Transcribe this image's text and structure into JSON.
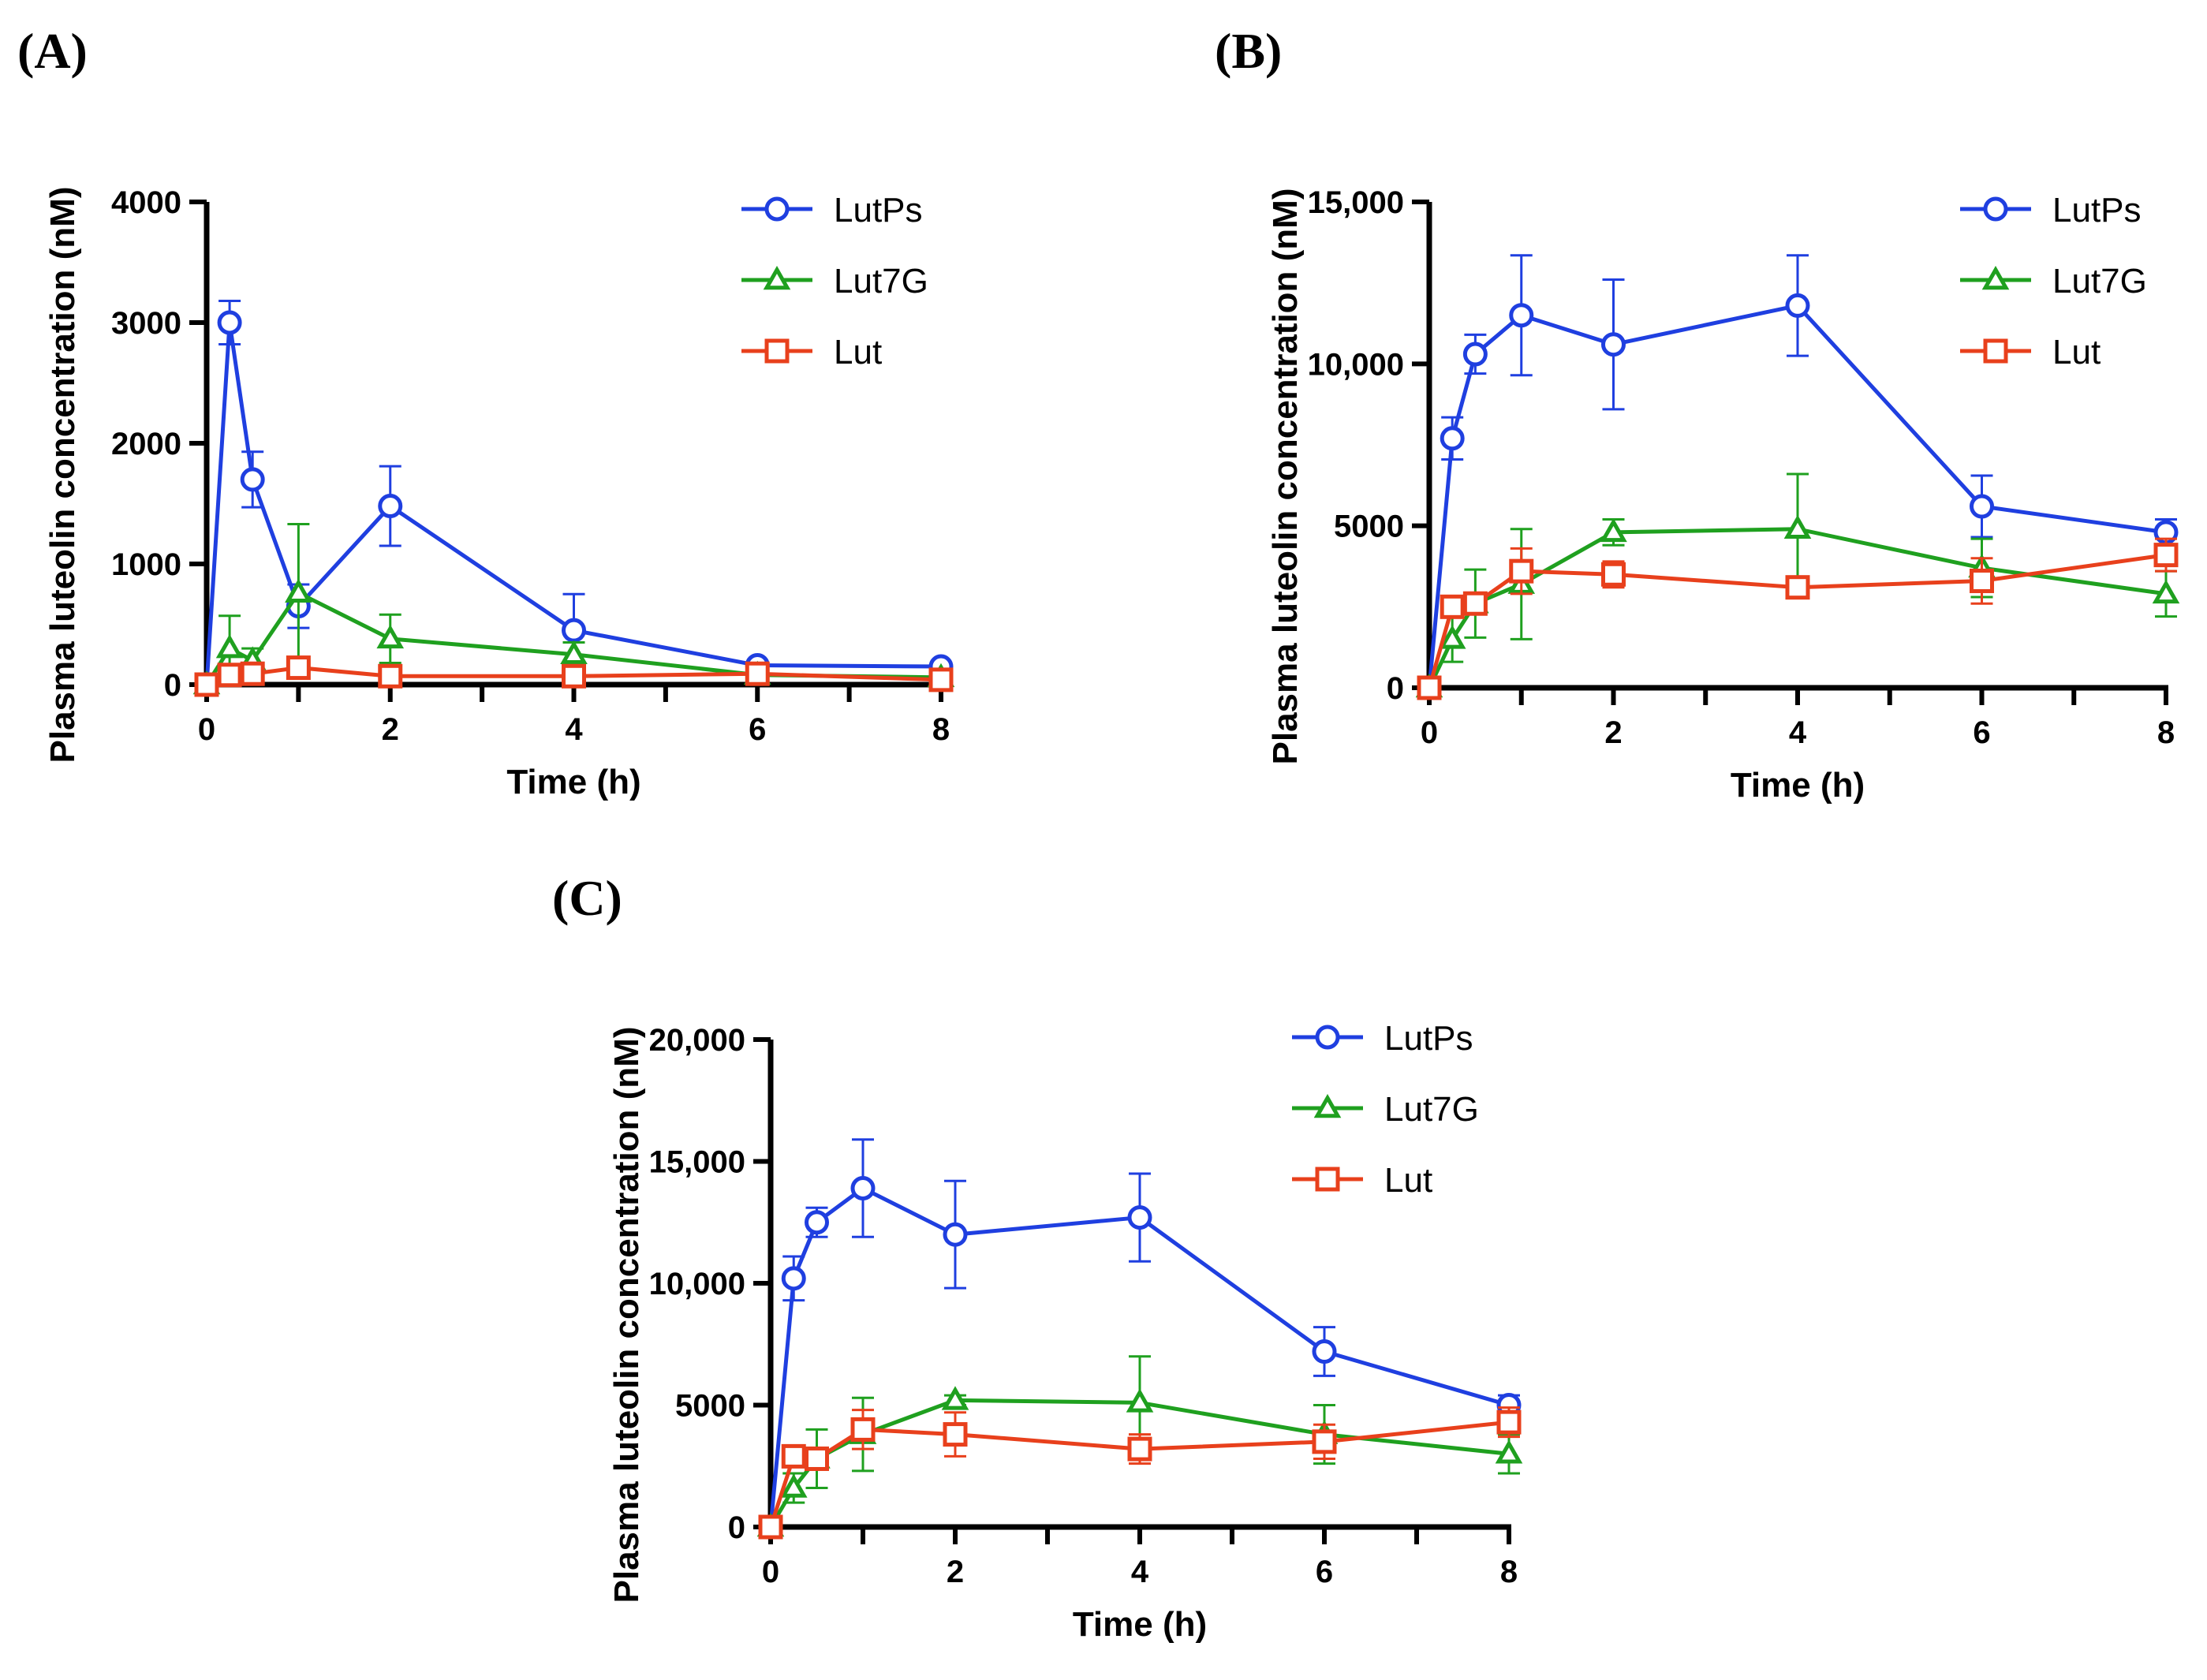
{
  "chart_data": [
    {
      "panel_label": "(A)",
      "type": "line",
      "xlabel": "Time (h)",
      "ylabel": "Plasma luteolin concentration (nM)",
      "xlim": [
        0,
        8
      ],
      "ylim": [
        0,
        4000
      ],
      "xticks": [
        0,
        2,
        4,
        6,
        8
      ],
      "xtick_labels": [
        "0",
        "2",
        "4",
        "6",
        "8"
      ],
      "yticks": [
        0,
        1000,
        2000,
        3000,
        4000
      ],
      "ytick_labels": [
        "0",
        "1000",
        "2000",
        "3000",
        "4000"
      ],
      "legend_position": "top-right",
      "series": [
        {
          "name": "LutPs",
          "marker": "circle",
          "color": "#1f3fe0",
          "x": [
            0,
            0.25,
            0.5,
            1,
            2,
            4,
            6,
            8
          ],
          "y": [
            0,
            3000,
            1700,
            650,
            1480,
            450,
            160,
            150
          ],
          "err": [
            0,
            180,
            230,
            180,
            330,
            300,
            30,
            30
          ]
        },
        {
          "name": "Lut7G",
          "marker": "triangle",
          "color": "#1fa01f",
          "x": [
            0,
            0.25,
            0.5,
            1,
            2,
            4,
            6,
            8
          ],
          "y": [
            0,
            300,
            200,
            760,
            380,
            250,
            80,
            60
          ],
          "err": [
            0,
            270,
            100,
            570,
            200,
            100,
            30,
            20
          ]
        },
        {
          "name": "Lut",
          "marker": "square",
          "color": "#e8401c",
          "x": [
            0,
            0.25,
            0.5,
            1,
            2,
            4,
            6,
            8
          ],
          "y": [
            0,
            80,
            90,
            140,
            70,
            70,
            90,
            40
          ],
          "err": [
            0,
            30,
            30,
            60,
            30,
            30,
            30,
            20
          ]
        }
      ]
    },
    {
      "panel_label": "(B)",
      "type": "line",
      "xlabel": "Time (h)",
      "ylabel": "Plasma luteolin concentration (nM)",
      "xlim": [
        0,
        8
      ],
      "ylim": [
        0,
        15000
      ],
      "xticks": [
        0,
        2,
        4,
        6,
        8
      ],
      "xtick_labels": [
        "0",
        "2",
        "4",
        "6",
        "8"
      ],
      "yticks": [
        0,
        5000,
        10000,
        15000
      ],
      "ytick_labels": [
        "0",
        "5000",
        "10,000",
        "15,000"
      ],
      "legend_position": "top-right",
      "series": [
        {
          "name": "LutPs",
          "marker": "circle",
          "color": "#1f3fe0",
          "x": [
            0,
            0.25,
            0.5,
            1,
            2,
            4,
            6,
            8
          ],
          "y": [
            0,
            7700,
            10300,
            11500,
            10600,
            11800,
            5600,
            4800
          ],
          "err": [
            0,
            650,
            600,
            1850,
            2000,
            1550,
            950,
            400
          ]
        },
        {
          "name": "Lut7G",
          "marker": "triangle",
          "color": "#1fa01f",
          "x": [
            0,
            0.25,
            0.5,
            1,
            2,
            4,
            6,
            8
          ],
          "y": [
            0,
            1500,
            2600,
            3200,
            4800,
            4900,
            3700,
            2900
          ],
          "err": [
            0,
            700,
            1050,
            1700,
            400,
            1700,
            900,
            700
          ]
        },
        {
          "name": "Lut",
          "marker": "square",
          "color": "#e8401c",
          "x": [
            0,
            0.25,
            0.5,
            1,
            2,
            4,
            6,
            8
          ],
          "y": [
            0,
            2500,
            2600,
            3600,
            3500,
            3100,
            3300,
            4100
          ],
          "err": [
            0,
            300,
            300,
            700,
            400,
            300,
            700,
            500
          ]
        }
      ]
    },
    {
      "panel_label": "(C)",
      "type": "line",
      "xlabel": "Time (h)",
      "ylabel": "Plasma luteolin concentration (nM)",
      "xlim": [
        0,
        8
      ],
      "ylim": [
        0,
        20000
      ],
      "xticks": [
        0,
        2,
        4,
        6,
        8
      ],
      "xtick_labels": [
        "0",
        "2",
        "4",
        "6",
        "8"
      ],
      "yticks": [
        0,
        5000,
        10000,
        15000,
        20000
      ],
      "ytick_labels": [
        "0",
        "5000",
        "10,000",
        "15,000",
        "20,000"
      ],
      "legend_position": "top-right",
      "series": [
        {
          "name": "LutPs",
          "marker": "circle",
          "color": "#1f3fe0",
          "x": [
            0,
            0.25,
            0.5,
            1,
            2,
            4,
            6,
            8
          ],
          "y": [
            0,
            10200,
            12500,
            13900,
            12000,
            12700,
            7200,
            5000
          ],
          "err": [
            0,
            900,
            600,
            2000,
            2200,
            1800,
            1000,
            400
          ]
        },
        {
          "name": "Lut7G",
          "marker": "triangle",
          "color": "#1fa01f",
          "x": [
            0,
            0.25,
            0.5,
            1,
            2,
            4,
            6,
            8
          ],
          "y": [
            0,
            1600,
            2800,
            3800,
            5200,
            5100,
            3800,
            3000
          ],
          "err": [
            0,
            600,
            1200,
            1500,
            200,
            1900,
            1200,
            800
          ]
        },
        {
          "name": "Lut",
          "marker": "square",
          "color": "#e8401c",
          "x": [
            0,
            0.25,
            0.5,
            1,
            2,
            4,
            6,
            8
          ],
          "y": [
            0,
            2900,
            2800,
            4000,
            3800,
            3200,
            3500,
            4300
          ],
          "err": [
            0,
            300,
            300,
            800,
            900,
            600,
            700,
            600
          ]
        }
      ]
    }
  ]
}
